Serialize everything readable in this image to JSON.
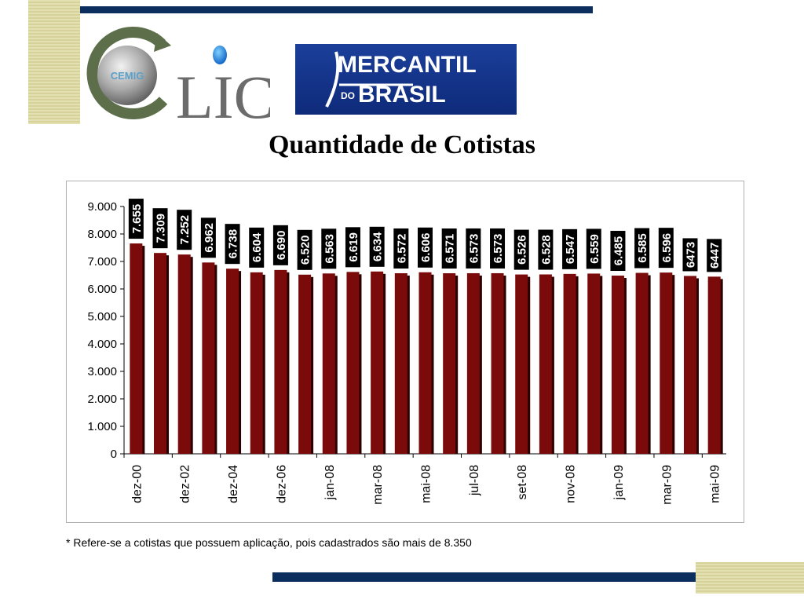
{
  "logos": {
    "cemig_text": "CEMIG",
    "clic_text": "LIC",
    "mercantil_line1": "MERCANTIL",
    "mercantil_line2_prefix": "DO",
    "mercantil_line2": "BRASIL"
  },
  "title": "Quantidade de Cotistas",
  "footnote": "* Refere-se a cotistas que possuem aplicação, pois cadastrados são mais de 8.350",
  "colors": {
    "bar": "#7b0a0a",
    "bar_shadow": "#2a0000",
    "label_bg": "#000000",
    "label_text": "#ffffff",
    "navy": "#0b2e5e"
  },
  "chart_data": {
    "type": "bar",
    "title": "Quantidade de Cotistas",
    "xlabel": "",
    "ylabel": "",
    "ylim": [
      0,
      9000
    ],
    "yticks": [
      "0",
      "1.000",
      "2.000",
      "3.000",
      "4.000",
      "5.000",
      "6.000",
      "7.000",
      "8.000",
      "9.000"
    ],
    "grid": false,
    "legend": "none",
    "x_tick_labels": [
      "dez-00",
      "dez-02",
      "dez-04",
      "dez-06",
      "jan-08",
      "mar-08",
      "mai-08",
      "jul-08",
      "set-08",
      "nov-08",
      "jan-09",
      "mar-09",
      "mai-09"
    ],
    "x_tick_bar_index": [
      0,
      2,
      4,
      6,
      8,
      10,
      12,
      14,
      16,
      18,
      20,
      22,
      24
    ],
    "values": [
      7655,
      7309,
      7252,
      6962,
      6738,
      6604,
      6690,
      6520,
      6563,
      6619,
      6634,
      6572,
      6606,
      6571,
      6573,
      6573,
      6526,
      6528,
      6547,
      6559,
      6485,
      6585,
      6596,
      6473,
      6447
    ],
    "value_labels": [
      "7.655",
      "7.309",
      "7.252",
      "6.962",
      "6.738",
      "6.604",
      "6.690",
      "6.520",
      "6.563",
      "6.619",
      "6.634",
      "6.572",
      "6.606",
      "6.571",
      "6.573",
      "6.573",
      "6.526",
      "6.528",
      "6.547",
      "6.559",
      "6.485",
      "6.585",
      "6.596",
      "6473",
      "6447"
    ]
  }
}
